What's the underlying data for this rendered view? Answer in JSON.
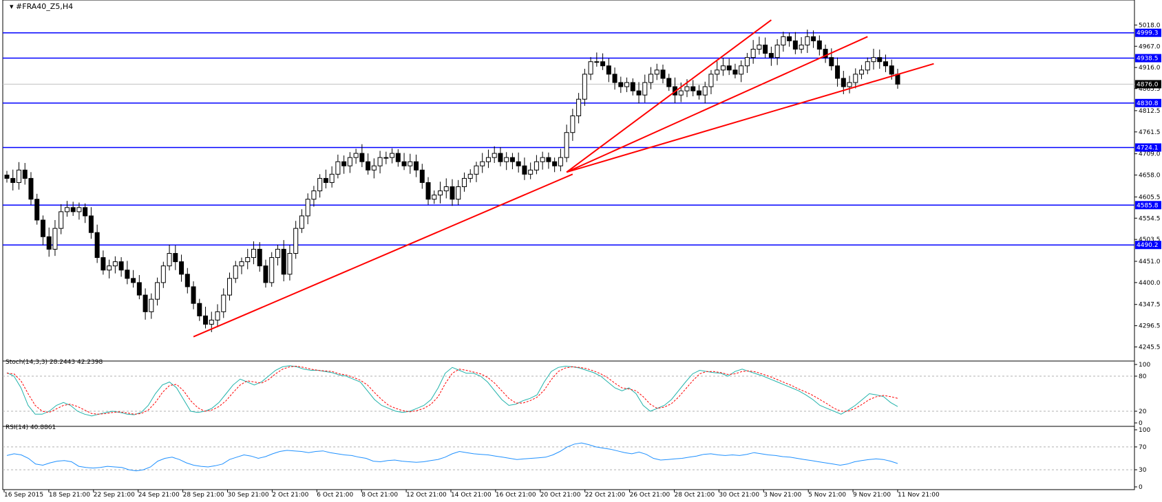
{
  "symbol_title": "#FRA40_Z5,H4",
  "colors": {
    "background": "#ffffff",
    "axis": "#000000",
    "candle_bull": "#ffffff",
    "candle_bear": "#000000",
    "support_resistance": "#0000ff",
    "trendline": "#ff0000",
    "stoch_main": "#20b2aa",
    "stoch_signal": "#ff0000",
    "rsi": "#1e90ff",
    "current_price_line": "#c0c0c0"
  },
  "chart_data": [
    {
      "type": "candlestick",
      "title": "#FRA40_Z5,H4",
      "ylim": [
        4220,
        5045
      ],
      "y_ticks": [
        "5018.0",
        "4967.0",
        "4916.0",
        "4865.5",
        "4812.5",
        "4761.5",
        "4709.0",
        "4658.0",
        "4605.5",
        "4554.5",
        "4503.5",
        "4451.0",
        "4400.0",
        "4347.5",
        "4296.5",
        "4245.5"
      ],
      "x_ticks": [
        "16 Sep 2015",
        "18 Sep 21:00",
        "22 Sep 21:00",
        "24 Sep 21:00",
        "28 Sep 21:00",
        "30 Sep 21:00",
        "2 Oct 21:00",
        "6 Oct 21:00",
        "8 Oct 21:00",
        "12 Oct 21:00",
        "14 Oct 21:00",
        "16 Oct 21:00",
        "20 Oct 21:00",
        "22 Oct 21:00",
        "26 Oct 21:00",
        "28 Oct 21:00",
        "30 Oct 21:00",
        "3 Nov 21:00",
        "5 Nov 21:00",
        "9 Nov 21:00",
        "11 Nov 21:00"
      ],
      "horizontal_levels": [
        {
          "label": "4999.3",
          "value": 4999.3
        },
        {
          "label": "4938.5",
          "value": 4938.5
        },
        {
          "label": "4830.8",
          "value": 4830.8
        },
        {
          "label": "4724.1",
          "value": 4724.1
        },
        {
          "label": "4585.8",
          "value": 4585.8
        },
        {
          "label": "4490.2",
          "value": 4490.2
        }
      ],
      "current_price": {
        "label": "4876.0",
        "value": 4876.0
      },
      "price_path": [
        [
          0,
          4650
        ],
        [
          1,
          4640
        ],
        [
          2,
          4670
        ],
        [
          3,
          4650
        ],
        [
          4,
          4600
        ],
        [
          5,
          4550
        ],
        [
          6,
          4510
        ],
        [
          7,
          4480
        ],
        [
          8,
          4530
        ],
        [
          9,
          4570
        ],
        [
          10,
          4580
        ],
        [
          11,
          4570
        ],
        [
          12,
          4580
        ],
        [
          13,
          4560
        ],
        [
          14,
          4520
        ],
        [
          15,
          4460
        ],
        [
          16,
          4430
        ],
        [
          17,
          4440
        ],
        [
          18,
          4450
        ],
        [
          19,
          4430
        ],
        [
          20,
          4410
        ],
        [
          21,
          4400
        ],
        [
          22,
          4370
        ],
        [
          23,
          4330
        ],
        [
          24,
          4360
        ],
        [
          25,
          4400
        ],
        [
          26,
          4440
        ],
        [
          27,
          4470
        ],
        [
          28,
          4450
        ],
        [
          29,
          4420
        ],
        [
          30,
          4390
        ],
        [
          31,
          4350
        ],
        [
          32,
          4320
        ],
        [
          33,
          4300
        ],
        [
          34,
          4310
        ],
        [
          35,
          4330
        ],
        [
          36,
          4370
        ],
        [
          37,
          4410
        ],
        [
          38,
          4440
        ],
        [
          39,
          4450
        ],
        [
          40,
          4460
        ],
        [
          41,
          4480
        ],
        [
          42,
          4440
        ],
        [
          43,
          4400
        ],
        [
          44,
          4460
        ],
        [
          45,
          4480
        ],
        [
          46,
          4420
        ],
        [
          47,
          4470
        ],
        [
          48,
          4530
        ],
        [
          49,
          4560
        ],
        [
          50,
          4600
        ],
        [
          51,
          4620
        ],
        [
          52,
          4650
        ],
        [
          53,
          4640
        ],
        [
          54,
          4660
        ],
        [
          55,
          4690
        ],
        [
          56,
          4680
        ],
        [
          57,
          4700
        ],
        [
          58,
          4710
        ],
        [
          59,
          4690
        ],
        [
          60,
          4670
        ],
        [
          61,
          4680
        ],
        [
          62,
          4700
        ],
        [
          63,
          4700
        ],
        [
          64,
          4710
        ],
        [
          65,
          4690
        ],
        [
          66,
          4680
        ],
        [
          67,
          4690
        ],
        [
          68,
          4670
        ],
        [
          69,
          4640
        ],
        [
          70,
          4600
        ],
        [
          71,
          4610
        ],
        [
          72,
          4620
        ],
        [
          73,
          4630
        ],
        [
          74,
          4600
        ],
        [
          75,
          4630
        ],
        [
          76,
          4650
        ],
        [
          77,
          4660
        ],
        [
          78,
          4680
        ],
        [
          79,
          4690
        ],
        [
          80,
          4700
        ],
        [
          81,
          4710
        ],
        [
          82,
          4690
        ],
        [
          83,
          4700
        ],
        [
          84,
          4690
        ],
        [
          85,
          4680
        ],
        [
          86,
          4660
        ],
        [
          87,
          4670
        ],
        [
          88,
          4690
        ],
        [
          89,
          4700
        ],
        [
          90,
          4690
        ],
        [
          91,
          4680
        ],
        [
          92,
          4700
        ],
        [
          93,
          4760
        ],
        [
          94,
          4800
        ],
        [
          95,
          4840
        ],
        [
          96,
          4900
        ],
        [
          97,
          4930
        ],
        [
          98,
          4930
        ],
        [
          99,
          4920
        ],
        [
          100,
          4900
        ],
        [
          101,
          4880
        ],
        [
          102,
          4870
        ],
        [
          103,
          4880
        ],
        [
          104,
          4860
        ],
        [
          105,
          4850
        ],
        [
          106,
          4880
        ],
        [
          107,
          4900
        ],
        [
          108,
          4910
        ],
        [
          109,
          4890
        ],
        [
          110,
          4870
        ],
        [
          111,
          4850
        ],
        [
          112,
          4860
        ],
        [
          113,
          4870
        ],
        [
          114,
          4860
        ],
        [
          115,
          4850
        ],
        [
          116,
          4870
        ],
        [
          117,
          4900
        ],
        [
          118,
          4910
        ],
        [
          119,
          4920
        ],
        [
          120,
          4910
        ],
        [
          121,
          4900
        ],
        [
          122,
          4920
        ],
        [
          123,
          4940
        ],
        [
          124,
          4960
        ],
        [
          125,
          4970
        ],
        [
          126,
          4950
        ],
        [
          127,
          4940
        ],
        [
          128,
          4970
        ],
        [
          129,
          4990
        ],
        [
          130,
          4980
        ],
        [
          131,
          4960
        ],
        [
          132,
          4970
        ],
        [
          133,
          4990
        ],
        [
          134,
          4980
        ],
        [
          135,
          4960
        ],
        [
          136,
          4940
        ],
        [
          137,
          4920
        ],
        [
          138,
          4890
        ],
        [
          139,
          4870
        ],
        [
          140,
          4880
        ],
        [
          141,
          4900
        ],
        [
          142,
          4910
        ],
        [
          143,
          4930
        ],
        [
          144,
          4940
        ],
        [
          145,
          4930
        ],
        [
          146,
          4920
        ],
        [
          147,
          4900
        ],
        [
          148,
          4876
        ]
      ],
      "trendlines": [
        {
          "from": [
            31,
            4270
          ],
          "to": [
            94,
            4660
          ]
        },
        {
          "from": [
            93,
            4665
          ],
          "to": [
            127,
            5030
          ]
        },
        {
          "from": [
            93,
            4665
          ],
          "to": [
            143,
            4990
          ]
        },
        {
          "from": [
            93,
            4665
          ],
          "to": [
            154,
            4925
          ]
        }
      ]
    },
    {
      "type": "line",
      "title": "Stoch(14,3,3) 28.2443 42.2398",
      "ylim": [
        0,
        100
      ],
      "y_ticks": [
        "100",
        "80",
        "20",
        "0"
      ],
      "levels": [
        80,
        20
      ],
      "series": [
        {
          "name": "main",
          "values": [
            86,
            80,
            60,
            30,
            15,
            15,
            20,
            30,
            35,
            30,
            20,
            15,
            12,
            15,
            18,
            20,
            18,
            15,
            14,
            18,
            30,
            50,
            65,
            70,
            60,
            40,
            20,
            18,
            20,
            25,
            35,
            50,
            65,
            75,
            70,
            65,
            70,
            80,
            90,
            96,
            98,
            96,
            92,
            90,
            90,
            88,
            86,
            82,
            80,
            75,
            70,
            55,
            40,
            30,
            25,
            20,
            18,
            20,
            25,
            30,
            40,
            60,
            85,
            95,
            90,
            85,
            85,
            80,
            70,
            55,
            40,
            30,
            32,
            38,
            42,
            48,
            70,
            88,
            95,
            97,
            96,
            94,
            90,
            86,
            80,
            70,
            60,
            55,
            60,
            50,
            30,
            20,
            25,
            30,
            40,
            55,
            70,
            84,
            90,
            88,
            86,
            85,
            80,
            88,
            92,
            88,
            84,
            80,
            75,
            70,
            65,
            60,
            55,
            48,
            40,
            30,
            25,
            20,
            15,
            22,
            30,
            40,
            50,
            48,
            45,
            35,
            28
          ]
        },
        {
          "name": "signal",
          "values": [
            85,
            84,
            72,
            50,
            30,
            20,
            18,
            24,
            30,
            32,
            28,
            22,
            16,
            15,
            16,
            18,
            19,
            17,
            15,
            16,
            22,
            35,
            52,
            64,
            66,
            55,
            38,
            26,
            20,
            22,
            28,
            38,
            52,
            65,
            72,
            70,
            68,
            74,
            84,
            92,
            96,
            97,
            95,
            92,
            90,
            89,
            88,
            84,
            82,
            78,
            73,
            65,
            52,
            40,
            30,
            25,
            21,
            19,
            21,
            25,
            32,
            45,
            67,
            85,
            92,
            90,
            87,
            84,
            78,
            68,
            55,
            42,
            34,
            34,
            38,
            44,
            56,
            74,
            88,
            94,
            96,
            95,
            93,
            89,
            84,
            77,
            68,
            60,
            58,
            55,
            45,
            32,
            25,
            27,
            33,
            44,
            58,
            72,
            84,
            88,
            88,
            86,
            83,
            84,
            88,
            89,
            87,
            83,
            79,
            74,
            69,
            64,
            58,
            53,
            47,
            40,
            33,
            25,
            20,
            20,
            25,
            32,
            40,
            45,
            47,
            45,
            42
          ]
        }
      ]
    },
    {
      "type": "line",
      "title": "RSI(14) 40.8861",
      "ylim": [
        0,
        100
      ],
      "y_ticks": [
        "100",
        "70",
        "30",
        "0"
      ],
      "levels": [
        70,
        30
      ],
      "series": [
        {
          "name": "RSI",
          "values": [
            55,
            58,
            56,
            50,
            40,
            38,
            42,
            45,
            46,
            44,
            36,
            34,
            33,
            34,
            36,
            35,
            34,
            30,
            28,
            30,
            35,
            45,
            50,
            52,
            48,
            42,
            38,
            36,
            35,
            37,
            40,
            48,
            52,
            56,
            54,
            50,
            53,
            58,
            62,
            64,
            63,
            62,
            60,
            62,
            63,
            60,
            58,
            56,
            55,
            52,
            50,
            45,
            44,
            46,
            47,
            45,
            44,
            43,
            44,
            46,
            48,
            52,
            58,
            62,
            60,
            58,
            57,
            56,
            54,
            52,
            50,
            48,
            49,
            50,
            51,
            52,
            56,
            62,
            70,
            75,
            77,
            74,
            70,
            68,
            66,
            63,
            60,
            58,
            61,
            57,
            50,
            47,
            48,
            49,
            50,
            52,
            54,
            57,
            58,
            56,
            55,
            56,
            55,
            57,
            60,
            58,
            56,
            55,
            53,
            52,
            50,
            48,
            46,
            44,
            42,
            40,
            38,
            40,
            44,
            46,
            48,
            49,
            48,
            45,
            41
          ]
        }
      ]
    }
  ]
}
